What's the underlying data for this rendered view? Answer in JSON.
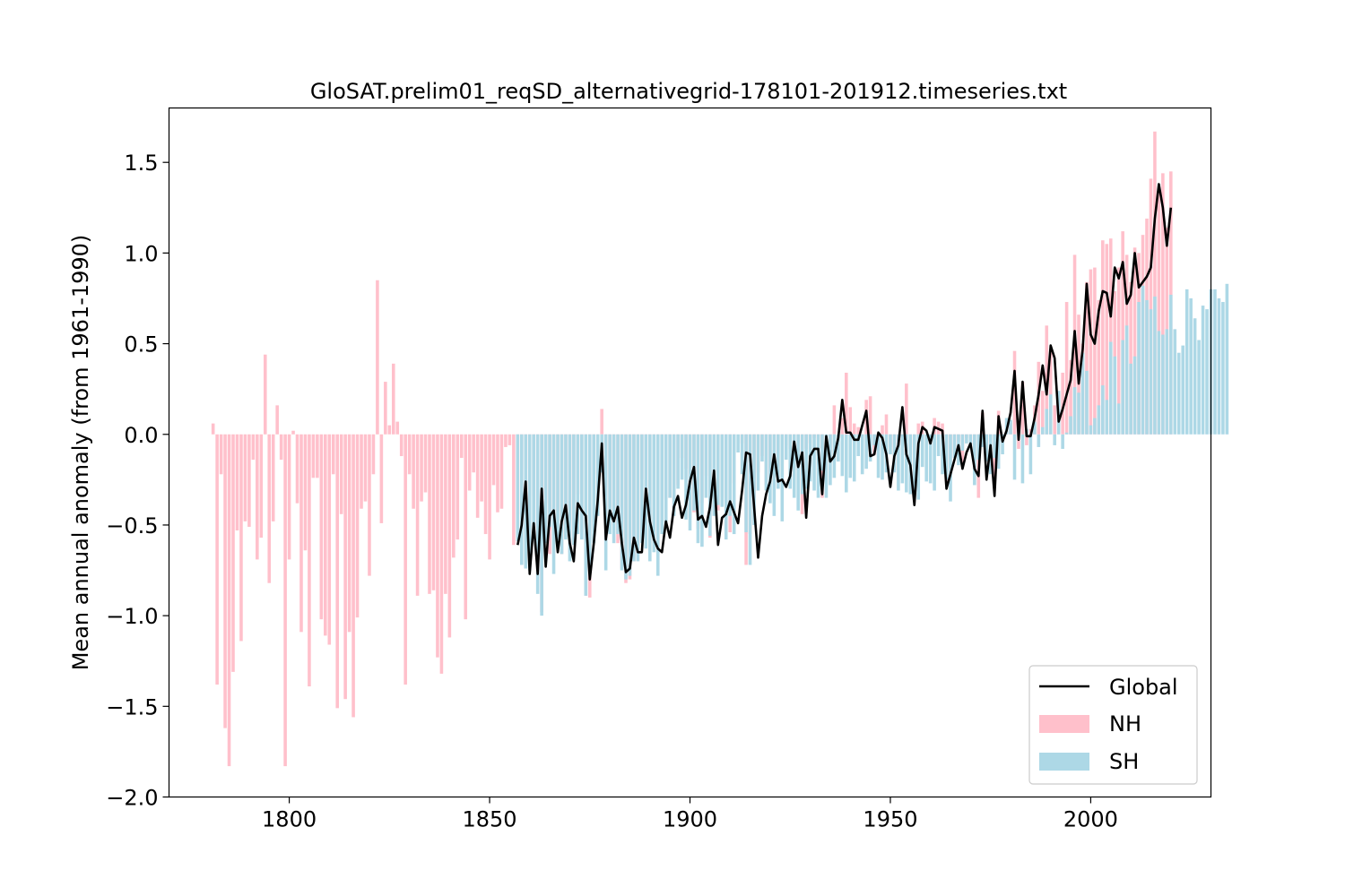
{
  "chart_data": {
    "type": "bar",
    "title": "GloSAT.prelim01_reqSD_alternativegrid-178101-201912.timeseries.txt",
    "xlabel": "",
    "ylabel": "Mean annual anomaly (from 1961-1990)",
    "xlim": [
      1770,
      2030
    ],
    "ylim": [
      -2.0,
      1.8
    ],
    "grid": false,
    "xticks": [
      1800,
      1850,
      1900,
      1950,
      2000
    ],
    "xtick_labels": [
      "1800",
      "1850",
      "1900",
      "1950",
      "2000"
    ],
    "yticks": [
      -2.0,
      -1.5,
      -1.0,
      -0.5,
      0.0,
      0.5,
      1.0,
      1.5
    ],
    "ytick_labels": [
      "−2.0",
      "−1.5",
      "−1.0",
      "−0.5",
      "0.0",
      "0.5",
      "1.0",
      "1.5"
    ],
    "legend": {
      "location": "bottom-right",
      "entries": [
        {
          "label": "Global",
          "kind": "line",
          "color": "#000000"
        },
        {
          "label": "NH",
          "kind": "bar",
          "color": "#ffc0cb"
        },
        {
          "label": "SH",
          "kind": "bar",
          "color": "#add8e6"
        }
      ]
    },
    "colors": {
      "NH": "#ffc0cb",
      "SH": "#add8e6",
      "Global": "#000000"
    },
    "nh_start_year": 1781,
    "nh": [
      0.06,
      -1.38,
      -0.22,
      -1.62,
      -1.83,
      -1.31,
      -0.53,
      -1.14,
      -0.48,
      -0.51,
      -0.14,
      -0.69,
      -0.57,
      0.44,
      -0.82,
      -0.48,
      0.16,
      -0.14,
      -1.83,
      -0.69,
      0.02,
      -0.38,
      -1.09,
      -0.64,
      -1.39,
      -0.24,
      -0.24,
      -1.02,
      -1.11,
      -1.16,
      -0.22,
      -1.51,
      -0.44,
      -1.46,
      -1.09,
      -1.56,
      -1.01,
      -0.41,
      -0.37,
      -0.78,
      -0.22,
      0.85,
      -0.49,
      0.29,
      0.05,
      0.39,
      0.07,
      -0.12,
      -1.38,
      -0.22,
      -0.41,
      -0.89,
      -0.37,
      -0.32,
      -0.88,
      -0.86,
      -1.23,
      -1.32,
      -0.88,
      -1.12,
      -0.68,
      -0.58,
      -0.13,
      -1.02,
      -0.31,
      -0.21,
      -0.46,
      -0.37,
      -0.55,
      -0.69,
      -0.28,
      -0.43,
      -0.41,
      -0.07,
      -0.06,
      -0.61,
      -0.44,
      -0.36,
      -0.19,
      -0.66,
      -0.34,
      -0.76,
      -0.98,
      -0.38,
      -0.66,
      -0.48,
      -0.42,
      -0.66,
      -0.57,
      -0.65,
      -0.41,
      -0.33,
      -0.54,
      -0.89,
      -0.9,
      -0.29,
      -0.22,
      0.14,
      -0.5,
      -0.4,
      -0.5,
      -0.6,
      -0.74,
      -0.82,
      -0.8,
      -0.7,
      -0.66,
      -0.25,
      -0.46,
      -0.6,
      -0.63,
      -0.66,
      -0.53,
      -0.36,
      -0.35,
      -0.41,
      -0.28,
      -0.13,
      -0.19,
      -0.46,
      -0.43,
      -0.52,
      -0.38,
      -0.23,
      -0.57,
      -0.44,
      -0.42,
      -0.35,
      -0.38,
      -0.54,
      -0.27,
      0.0,
      -0.05,
      -0.72,
      -0.55,
      -0.35,
      -0.21,
      -0.12,
      -0.28,
      -0.22,
      -0.24,
      -0.23,
      -0.24,
      -0.06,
      -0.08,
      -0.23,
      -0.2,
      -0.44,
      -0.08,
      -0.05,
      -0.02,
      -0.03,
      -0.35,
      0.0,
      -0.1,
      0.16,
      0.0,
      0.09,
      0.34,
      0.15,
      0.06,
      0.04,
      -0.01,
      0.19,
      0.21,
      -0.11,
      -0.09,
      0.05,
      0.11,
      -0.07,
      -0.2,
      -0.06,
      -0.02,
      0.28,
      -0.07,
      -0.22,
      0.06,
      0.07,
      -0.04,
      -0.06,
      0.09,
      0.07,
      0.06,
      -0.26,
      -0.14,
      -0.1,
      -0.04,
      -0.17,
      -0.02,
      -0.04,
      -0.12,
      -0.35,
      0.12,
      -0.15,
      -0.05,
      -0.29,
      0.13,
      -0.02,
      0.02,
      0.06,
      0.46,
      -0.08,
      0.29,
      -0.06,
      0.03,
      0.16,
      0.4,
      0.24,
      0.6,
      0.47,
      0.16,
      0.22,
      0.34,
      0.73,
      0.41,
      0.99,
      0.66,
      0.5,
      0.84,
      0.91,
      0.92,
      0.74,
      1.07,
      1.05,
      1.08,
      0.79,
      0.92,
      1.12,
      0.99,
      0.84,
      1.03,
      1.0,
      1.1,
      1.19,
      1.41,
      1.67,
      1.36,
      1.44,
      1.14,
      1.45
    ],
    "sh_start_year": 1857,
    "sh": [
      -0.59,
      -0.72,
      -0.74,
      -0.75,
      -0.56,
      -0.88,
      -1.0,
      -0.6,
      -0.51,
      -0.77,
      -0.62,
      -0.66,
      -0.58,
      -0.7,
      -0.61,
      -0.55,
      -0.58,
      -0.89,
      -0.74,
      -0.6,
      -0.45,
      -0.21,
      -0.75,
      -0.55,
      -0.6,
      -0.55,
      -0.75,
      -0.8,
      -0.78,
      -0.7,
      -0.7,
      -0.6,
      -0.63,
      -0.7,
      -0.65,
      -0.78,
      -0.55,
      -0.5,
      -0.35,
      -0.45,
      -0.3,
      -0.25,
      -0.47,
      -0.53,
      -0.42,
      -0.6,
      -0.62,
      -0.35,
      -0.56,
      -0.45,
      -0.39,
      -0.4,
      -0.58,
      -0.45,
      -0.55,
      -0.1,
      -0.22,
      -0.54,
      -0.72,
      -0.5,
      -0.31,
      -0.15,
      -0.31,
      -0.38,
      -0.45,
      -0.3,
      -0.48,
      -0.14,
      -0.3,
      -0.35,
      -0.42,
      -0.33,
      -0.3,
      -0.26,
      -0.31,
      -0.35,
      -0.2,
      -0.35,
      -0.28,
      -0.24,
      -0.15,
      -0.23,
      -0.32,
      -0.24,
      -0.26,
      -0.12,
      -0.22,
      -0.19,
      -0.15,
      -0.06,
      -0.24,
      -0.25,
      -0.21,
      -0.11,
      -0.21,
      -0.31,
      -0.27,
      -0.32,
      -0.33,
      -0.34,
      -0.36,
      -0.18,
      -0.26,
      -0.27,
      -0.31,
      -0.12,
      -0.22,
      -0.25,
      -0.37,
      -0.13,
      -0.17,
      -0.09,
      -0.05,
      -0.06,
      -0.28,
      -0.14,
      -0.07,
      -0.15,
      -0.22,
      -0.13,
      -0.19,
      -0.11,
      0.09,
      0.08,
      -0.25,
      0.04,
      -0.27,
      0.03,
      -0.22,
      0.07,
      -0.07,
      0.04,
      0.14,
      0.22,
      -0.06,
      0.24,
      -0.08,
      0.01,
      0.1,
      0.26,
      0.23,
      0.45,
      0.35,
      0.05,
      0.09,
      0.16,
      0.27,
      0.19,
      0.51,
      0.43,
      0.17,
      0.52,
      0.6,
      0.39,
      0.43,
      0.73,
      0.82,
      0.74,
      0.69,
      0.76,
      0.57,
      0.55,
      0.58,
      0.77,
      0.58,
      0.45,
      0.49,
      0.8,
      0.75,
      0.64,
      0.52,
      0.71,
      0.69,
      0.8,
      0.8,
      0.75,
      0.73,
      0.83
    ],
    "global_start_year": 1857,
    "global": [
      -0.61,
      -0.5,
      -0.26,
      -0.77,
      -0.49,
      -0.77,
      -0.3,
      -0.73,
      -0.45,
      -0.42,
      -0.65,
      -0.48,
      -0.39,
      -0.6,
      -0.7,
      -0.38,
      -0.42,
      -0.45,
      -0.8,
      -0.6,
      -0.36,
      -0.05,
      -0.58,
      -0.42,
      -0.48,
      -0.4,
      -0.6,
      -0.76,
      -0.74,
      -0.57,
      -0.65,
      -0.65,
      -0.3,
      -0.48,
      -0.58,
      -0.63,
      -0.65,
      -0.48,
      -0.57,
      -0.4,
      -0.34,
      -0.46,
      -0.39,
      -0.26,
      -0.18,
      -0.47,
      -0.45,
      -0.51,
      -0.4,
      -0.2,
      -0.61,
      -0.46,
      -0.44,
      -0.37,
      -0.43,
      -0.49,
      -0.31,
      -0.1,
      -0.11,
      -0.4,
      -0.68,
      -0.45,
      -0.33,
      -0.26,
      -0.11,
      -0.26,
      -0.25,
      -0.29,
      -0.23,
      -0.04,
      -0.18,
      -0.1,
      -0.46,
      -0.12,
      -0.08,
      -0.08,
      -0.33,
      -0.01,
      -0.15,
      -0.12,
      -0.02,
      0.19,
      0.01,
      0.01,
      -0.03,
      -0.03,
      0.05,
      0.13,
      -0.12,
      -0.11,
      0.01,
      -0.02,
      -0.11,
      -0.29,
      -0.12,
      -0.06,
      0.15,
      -0.11,
      -0.17,
      -0.39,
      -0.05,
      0.04,
      0.02,
      -0.05,
      0.04,
      0.03,
      0.02,
      -0.3,
      -0.22,
      -0.14,
      -0.06,
      -0.19,
      -0.1,
      -0.05,
      -0.19,
      -0.23,
      0.13,
      -0.25,
      -0.06,
      -0.34,
      0.1,
      -0.04,
      0.02,
      0.12,
      0.35,
      -0.03,
      0.29,
      -0.01,
      -0.01,
      0.09,
      0.22,
      0.38,
      0.22,
      0.49,
      0.42,
      0.07,
      0.14,
      0.22,
      0.3,
      0.57,
      0.28,
      0.47,
      0.83,
      0.55,
      0.5,
      0.68,
      0.79,
      0.78,
      0.65,
      0.92,
      0.86,
      0.95,
      0.72,
      0.77,
      1.0,
      0.81,
      0.84,
      0.87,
      0.92,
      1.19,
      1.38,
      1.25,
      1.04,
      1.25
    ]
  }
}
